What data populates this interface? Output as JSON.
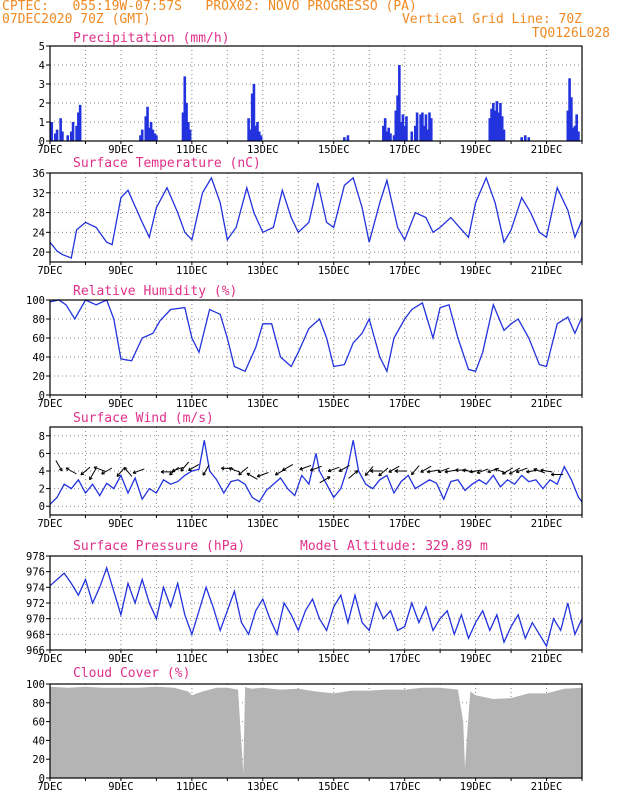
{
  "header": {
    "line1_left": "CPTEC:   055:19W-07:57S   PROX02: NOVO PROGRESSO (PA)",
    "line2_left": "07DEC2020 70Z (GMT)",
    "line2_right": "Vertical Grid Line: 70Z",
    "line3_right": "TQ0126L028"
  },
  "colors": {
    "title": "#e0308a",
    "header": "#f08a24",
    "line": "#2233dd",
    "bar": "#2233dd",
    "cloud": "#b4b4b4",
    "arrow": "#000000"
  },
  "x_axis": {
    "days": [
      7,
      8,
      9,
      10,
      11,
      12,
      13,
      14,
      15,
      16,
      17,
      18,
      19,
      20,
      21,
      22
    ],
    "labels": [
      "7DEC",
      "9DEC",
      "11DEC",
      "13DEC",
      "15DEC",
      "17DEC",
      "19DEC",
      "21DEC"
    ],
    "label_days": [
      7,
      9,
      11,
      13,
      15,
      17,
      19,
      21
    ],
    "start_day": 7,
    "end_day": 22
  },
  "chart_data": [
    {
      "type": "bar",
      "title": "Precipitation (mm/h)",
      "ylim": [
        0,
        5
      ],
      "yticks": [
        0,
        1,
        2,
        3,
        4,
        5
      ],
      "x": [
        7.05,
        7.15,
        7.2,
        7.3,
        7.35,
        7.5,
        7.6,
        7.65,
        7.75,
        7.8,
        7.85,
        9.55,
        9.6,
        9.7,
        9.75,
        9.8,
        9.85,
        9.9,
        9.95,
        10.0,
        10.75,
        10.8,
        10.85,
        10.9,
        10.95,
        12.6,
        12.65,
        12.7,
        12.75,
        12.8,
        12.85,
        12.9,
        12.95,
        15.3,
        15.4,
        16.4,
        16.45,
        16.5,
        16.55,
        16.6,
        16.7,
        16.75,
        16.8,
        16.85,
        16.9,
        16.95,
        17.0,
        17.05,
        17.2,
        17.3,
        17.35,
        17.45,
        17.5,
        17.55,
        17.6,
        17.65,
        17.7,
        17.75,
        19.4,
        19.45,
        19.5,
        19.55,
        19.6,
        19.65,
        19.7,
        19.75,
        19.8,
        20.3,
        20.4,
        20.5,
        21.6,
        21.65,
        21.7,
        21.75,
        21.8,
        21.85,
        21.9
      ],
      "values": [
        1.0,
        0.4,
        0.6,
        1.2,
        0.5,
        0.3,
        0.5,
        1.0,
        0.8,
        1.5,
        1.9,
        0.3,
        0.6,
        1.3,
        1.8,
        0.7,
        1.0,
        0.6,
        0.4,
        0.3,
        1.5,
        3.4,
        2.0,
        1.0,
        0.6,
        1.2,
        0.6,
        2.5,
        3.0,
        0.8,
        1.0,
        0.5,
        0.3,
        0.2,
        0.3,
        0.8,
        1.2,
        0.5,
        0.7,
        0.4,
        0.3,
        1.6,
        2.4,
        4.0,
        1.0,
        1.4,
        0.8,
        1.3,
        0.5,
        0.8,
        1.5,
        1.4,
        1.5,
        0.8,
        1.4,
        0.6,
        1.5,
        1.2,
        1.2,
        1.7,
        2.0,
        1.6,
        2.1,
        1.5,
        2.0,
        1.3,
        0.6,
        0.2,
        0.3,
        0.2,
        1.6,
        3.3,
        2.3,
        0.7,
        0.8,
        1.4,
        0.5
      ]
    },
    {
      "type": "line",
      "title": "Surface Temperature (nC)",
      "ylim": [
        18,
        36
      ],
      "yticks": [
        20,
        24,
        28,
        32,
        36
      ],
      "x": [
        7.0,
        7.2,
        7.35,
        7.6,
        7.75,
        8.0,
        8.3,
        8.6,
        8.75,
        9.0,
        9.2,
        9.6,
        9.8,
        10.0,
        10.3,
        10.6,
        10.8,
        11.0,
        11.3,
        11.55,
        11.8,
        12.0,
        12.25,
        12.55,
        12.75,
        13.0,
        13.3,
        13.55,
        13.8,
        14.0,
        14.3,
        14.55,
        14.8,
        15.0,
        15.3,
        15.55,
        15.8,
        16.0,
        16.3,
        16.5,
        16.8,
        17.0,
        17.3,
        17.6,
        17.8,
        18.0,
        18.3,
        18.55,
        18.8,
        19.0,
        19.3,
        19.55,
        19.8,
        20.0,
        20.3,
        20.55,
        20.8,
        21.0,
        21.3,
        21.6,
        21.8,
        22.0
      ],
      "values": [
        22.0,
        20.2,
        19.5,
        18.8,
        24.5,
        26.0,
        25.0,
        22.0,
        21.5,
        31.0,
        32.5,
        26.0,
        23.0,
        29.0,
        33.0,
        28.0,
        24.0,
        22.5,
        32.0,
        35.0,
        30.0,
        22.5,
        25.0,
        33.0,
        28.0,
        24.0,
        25.0,
        32.5,
        27.0,
        24.0,
        26.0,
        34.0,
        26.0,
        25.0,
        33.5,
        35.0,
        29.0,
        22.0,
        30.0,
        34.5,
        25.0,
        22.5,
        28.0,
        27.0,
        24.0,
        25.0,
        27.0,
        25.0,
        23.0,
        30.0,
        35.0,
        30.0,
        22.0,
        24.5,
        31.0,
        28.0,
        24.0,
        23.0,
        33.0,
        28.5,
        23.0,
        26.5
      ]
    },
    {
      "type": "line",
      "title": "Relative Humidity (%)",
      "ylim": [
        0,
        100
      ],
      "yticks": [
        0,
        20,
        40,
        60,
        80,
        100
      ],
      "x": [
        7.0,
        7.25,
        7.45,
        7.7,
        8.0,
        8.3,
        8.6,
        8.8,
        9.0,
        9.3,
        9.6,
        9.9,
        10.1,
        10.4,
        10.8,
        11.0,
        11.2,
        11.5,
        11.8,
        12.0,
        12.2,
        12.5,
        12.8,
        13.0,
        13.25,
        13.5,
        13.8,
        14.0,
        14.3,
        14.6,
        14.8,
        15.0,
        15.3,
        15.55,
        15.8,
        16.0,
        16.3,
        16.5,
        16.7,
        17.0,
        17.2,
        17.5,
        17.8,
        18.0,
        18.25,
        18.5,
        18.8,
        19.0,
        19.2,
        19.5,
        19.8,
        20.0,
        20.2,
        20.5,
        20.8,
        21.0,
        21.3,
        21.6,
        21.8,
        22.0
      ],
      "values": [
        98.0,
        100.0,
        95.0,
        80.0,
        100.0,
        95.0,
        100.0,
        80.0,
        38.0,
        36.0,
        60.0,
        65.0,
        78.0,
        90.0,
        92.0,
        60.0,
        45.0,
        90.0,
        85.0,
        60.0,
        30.0,
        25.0,
        50.0,
        75.0,
        75.0,
        40.0,
        30.0,
        45.0,
        70.0,
        80.0,
        60.0,
        30.0,
        32.0,
        55.0,
        65.0,
        80.0,
        40.0,
        25.0,
        60.0,
        80.0,
        90.0,
        97.0,
        60.0,
        92.0,
        95.0,
        60.0,
        27.0,
        25.0,
        45.0,
        95.0,
        68.0,
        75.0,
        80.0,
        60.0,
        32.0,
        30.0,
        75.0,
        82.0,
        65.0,
        82.0
      ]
    },
    {
      "type": "line",
      "title": "Surface Wind (m/s)",
      "ylim": [
        -1,
        9
      ],
      "yticks": [
        0,
        2,
        4,
        6,
        8
      ],
      "x": [
        7.0,
        7.2,
        7.4,
        7.6,
        7.8,
        8.0,
        8.2,
        8.4,
        8.6,
        8.8,
        9.0,
        9.2,
        9.4,
        9.6,
        9.8,
        10.0,
        10.2,
        10.4,
        10.6,
        10.8,
        11.0,
        11.2,
        11.35,
        11.5,
        11.7,
        11.9,
        12.1,
        12.3,
        12.5,
        12.7,
        12.9,
        13.1,
        13.3,
        13.5,
        13.7,
        13.9,
        14.1,
        14.3,
        14.5,
        14.6,
        14.8,
        15.0,
        15.2,
        15.4,
        15.55,
        15.7,
        15.9,
        16.1,
        16.3,
        16.5,
        16.7,
        16.9,
        17.1,
        17.3,
        17.5,
        17.7,
        17.9,
        18.1,
        18.3,
        18.5,
        18.7,
        18.9,
        19.1,
        19.3,
        19.5,
        19.7,
        19.9,
        20.1,
        20.3,
        20.5,
        20.7,
        20.9,
        21.1,
        21.3,
        21.5,
        21.7,
        21.9,
        22.0
      ],
      "values": [
        0.2,
        1.0,
        2.5,
        2.0,
        3.0,
        1.5,
        2.5,
        1.2,
        2.6,
        2.0,
        3.5,
        1.5,
        3.2,
        0.8,
        2.0,
        1.5,
        3.0,
        2.5,
        2.8,
        3.5,
        4.0,
        4.2,
        7.5,
        4.0,
        3.0,
        1.5,
        2.8,
        3.0,
        2.5,
        1.0,
        0.5,
        1.8,
        2.5,
        3.2,
        2.0,
        1.2,
        3.5,
        2.5,
        6.0,
        4.0,
        2.5,
        1.0,
        2.0,
        4.5,
        7.5,
        4.0,
        2.5,
        2.0,
        3.0,
        3.5,
        1.5,
        2.8,
        3.5,
        2.0,
        2.5,
        3.0,
        2.6,
        0.8,
        2.8,
        3.0,
        1.8,
        2.5,
        3.0,
        2.5,
        3.5,
        2.2,
        3.0,
        2.5,
        3.5,
        2.8,
        3.0,
        2.0,
        3.0,
        2.5,
        4.5,
        3.0,
        1.0,
        0.5
      ]
    },
    {
      "type": "line",
      "title": "Surface Pressure (hPa)",
      "subtitle": "Model Altitude: 329.89 m",
      "ylim": [
        966,
        978
      ],
      "yticks": [
        966,
        968,
        970,
        972,
        974,
        976,
        978
      ],
      "x": [
        7.0,
        7.2,
        7.4,
        7.6,
        7.8,
        8.0,
        8.2,
        8.4,
        8.6,
        8.8,
        9.0,
        9.2,
        9.4,
        9.6,
        9.8,
        10.0,
        10.2,
        10.4,
        10.6,
        10.8,
        11.0,
        11.2,
        11.4,
        11.6,
        11.8,
        12.0,
        12.2,
        12.4,
        12.6,
        12.8,
        13.0,
        13.2,
        13.4,
        13.6,
        13.8,
        14.0,
        14.2,
        14.4,
        14.6,
        14.8,
        15.0,
        15.2,
        15.4,
        15.6,
        15.8,
        16.0,
        16.2,
        16.4,
        16.6,
        16.8,
        17.0,
        17.2,
        17.4,
        17.6,
        17.8,
        18.0,
        18.2,
        18.4,
        18.6,
        18.8,
        19.0,
        19.2,
        19.4,
        19.6,
        19.8,
        20.0,
        20.2,
        20.4,
        20.6,
        20.8,
        21.0,
        21.2,
        21.4,
        21.6,
        21.8,
        22.0
      ],
      "values": [
        974.2,
        975.0,
        975.8,
        974.5,
        973.0,
        975.0,
        972.0,
        974.0,
        976.5,
        973.5,
        970.5,
        974.5,
        972.0,
        975.0,
        972.0,
        970.0,
        974.0,
        971.5,
        974.5,
        970.5,
        968.0,
        971.0,
        974.0,
        971.5,
        968.5,
        971.0,
        973.5,
        969.5,
        968.0,
        971.0,
        972.5,
        970.0,
        968.0,
        972.0,
        970.5,
        968.5,
        971.0,
        972.5,
        970.0,
        968.5,
        971.5,
        973.0,
        969.5,
        973.0,
        969.5,
        968.5,
        972.0,
        970.0,
        971.0,
        968.5,
        969.0,
        972.0,
        969.5,
        971.5,
        968.5,
        970.0,
        971.0,
        968.0,
        970.5,
        967.5,
        969.5,
        971.0,
        968.5,
        970.5,
        967.0,
        969.0,
        970.5,
        967.5,
        969.5,
        968.0,
        966.5,
        970.0,
        968.5,
        972.0,
        968.0,
        970.0
      ]
    },
    {
      "type": "area",
      "title": "Cloud Cover (%)",
      "ylim": [
        0,
        100
      ],
      "yticks": [
        0,
        20,
        40,
        60,
        80,
        100
      ],
      "x": [
        7.0,
        7.5,
        8.0,
        8.5,
        9.0,
        9.5,
        10.0,
        10.5,
        10.9,
        11.0,
        11.3,
        11.5,
        11.7,
        12.0,
        12.3,
        12.45,
        12.5,
        12.55,
        12.7,
        13.0,
        13.5,
        14.0,
        14.5,
        15.0,
        15.5,
        16.0,
        16.5,
        17.0,
        17.5,
        18.0,
        18.5,
        18.65,
        18.7,
        18.75,
        18.85,
        19.0,
        19.5,
        20.0,
        20.5,
        21.0,
        21.5,
        22.0
      ],
      "values": [
        97,
        96,
        97,
        96,
        96,
        96,
        97,
        96,
        92,
        88,
        92,
        94,
        96,
        96,
        94,
        5,
        97,
        96,
        95,
        96,
        94,
        95,
        92,
        90,
        93,
        93,
        94,
        94,
        96,
        96,
        94,
        60,
        10,
        40,
        92,
        88,
        84,
        85,
        90,
        90,
        95,
        96
      ]
    }
  ],
  "wind_arrows": {
    "x": [
      7.25,
      7.6,
      8.0,
      8.2,
      8.4,
      8.6,
      9.0,
      9.2,
      9.5,
      10.3,
      10.5,
      10.6,
      10.8,
      11.05,
      11.4,
      12.0,
      12.2,
      12.45,
      12.7,
      13.0,
      13.5,
      13.7,
      14.2,
      14.5,
      14.75,
      15.0,
      15.3,
      15.55,
      16.0,
      16.2,
      16.4,
      16.7,
      16.9,
      17.3,
      17.6,
      17.8,
      18.1,
      18.3,
      18.6,
      18.8,
      19.0,
      19.2,
      19.5,
      19.7,
      19.9,
      20.1,
      20.3,
      20.6,
      20.8,
      21.0,
      21.3
    ],
    "direction_deg": [
      300,
      150,
      220,
      240,
      160,
      210,
      230,
      130,
      200,
      180,
      220,
      200,
      230,
      210,
      240,
      180,
      160,
      220,
      150,
      200,
      210,
      210,
      200,
      200,
      30,
      200,
      210,
      40,
      230,
      180,
      220,
      210,
      180,
      230,
      210,
      190,
      200,
      190,
      180,
      170,
      190,
      200,
      200,
      160,
      210,
      210,
      200,
      190,
      160,
      170,
      180
    ],
    "level": [
      4.6,
      4.0,
      4.0,
      3.6,
      4.2,
      4.0,
      3.9,
      3.9,
      4.0,
      3.9,
      4.0,
      4.2,
      4.5,
      4.4,
      4.1,
      4.3,
      4.1,
      4.0,
      3.4,
      3.6,
      3.9,
      4.4,
      4.4,
      4.3,
      3.0,
      4.2,
      4.3,
      3.6,
      4.0,
      4.0,
      3.9,
      4.2,
      4.0,
      4.1,
      4.2,
      4.0,
      4.1,
      4.0,
      4.1,
      4.0,
      4.0,
      4.0,
      4.1,
      4.0,
      4.0,
      4.0,
      4.1,
      4.0,
      4.0,
      4.0,
      3.6
    ]
  }
}
